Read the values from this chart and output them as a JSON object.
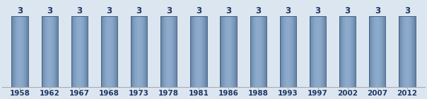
{
  "categories": [
    "1958",
    "1962",
    "1967",
    "1968",
    "1973",
    "1978",
    "1981",
    "1986",
    "1988",
    "1993",
    "1997",
    "2002",
    "2007",
    "2012"
  ],
  "values": [
    3,
    3,
    3,
    3,
    3,
    3,
    3,
    3,
    3,
    3,
    3,
    3,
    3,
    3
  ],
  "bar_color_main": "#4d6a8a",
  "bar_color_light": "#7a9bbf",
  "bar_color_dark": "#2e4d6b",
  "bar_edge_color": "#3a587a",
  "background_color": "#dce6f1",
  "plot_bg_color": "#dce6f1",
  "tick_label_color": "#1f3864",
  "value_label_color": "#1f3864",
  "ylim": [
    0,
    3.6
  ],
  "tick_fontsize": 7.5,
  "value_fontsize": 8.5,
  "bar_width": 0.55
}
